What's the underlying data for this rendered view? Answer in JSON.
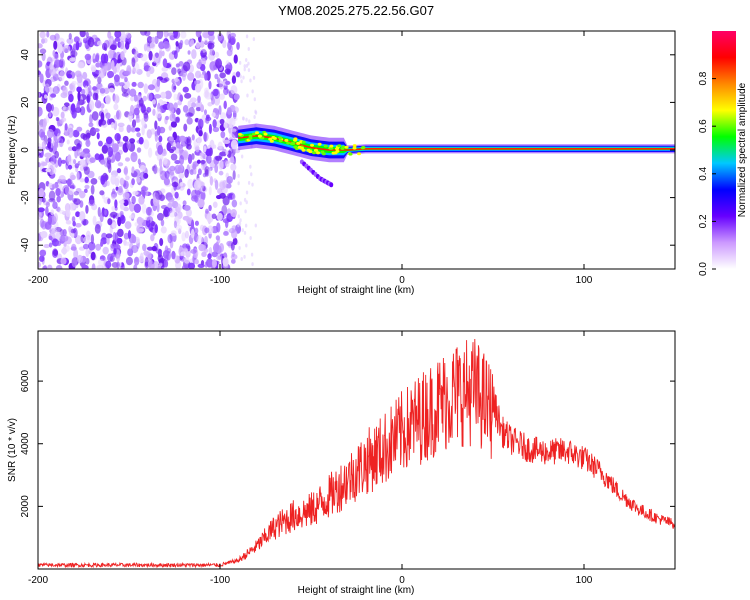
{
  "title": "YM08.2025.275.22.56.G07",
  "chart_data": [
    {
      "type": "heatmap",
      "name": "spectrogram",
      "xlabel": "Height of straight line (km)",
      "ylabel": "Frequency (Hz)",
      "xlim": [
        -200,
        150
      ],
      "ylim": [
        -50,
        50
      ],
      "xticks": [
        -200,
        -100,
        0,
        100
      ],
      "yticks": [
        -40,
        -20,
        0,
        20,
        40
      ],
      "colorbar": {
        "label": "Normalized spectral amplitude",
        "range": [
          0,
          1
        ],
        "ticks": [
          "0.0",
          "0.2",
          "0.4",
          "0.6",
          "0.8"
        ],
        "tick_values": [
          0.0,
          0.2,
          0.4,
          0.6,
          0.8
        ],
        "stops": [
          "#ffffff",
          "#cc99ff",
          "#6600ff",
          "#0000ff",
          "#00c8ff",
          "#00ff00",
          "#ffff00",
          "#ff8800",
          "#ff0000",
          "#ff0066"
        ]
      },
      "noise_region": {
        "x_from": -200,
        "x_to": -90
      },
      "signal_ridge": [
        {
          "x": -90,
          "f": 5
        },
        {
          "x": -80,
          "f": 6
        },
        {
          "x": -70,
          "f": 5
        },
        {
          "x": -60,
          "f": 3
        },
        {
          "x": -50,
          "f": 1
        },
        {
          "x": -40,
          "f": 0
        },
        {
          "x": -30,
          "f": 0
        },
        {
          "x": -20,
          "f": 0.5
        },
        {
          "x": 0,
          "f": 0.5
        },
        {
          "x": 50,
          "f": 0.5
        },
        {
          "x": 100,
          "f": 0.5
        },
        {
          "x": 150,
          "f": 0.5
        }
      ],
      "branch": [
        {
          "x": -55,
          "f": -5
        },
        {
          "x": -45,
          "f": -12
        },
        {
          "x": -38,
          "f": -15
        }
      ]
    },
    {
      "type": "line",
      "name": "snr",
      "xlabel": "Height of straight line (km)",
      "ylabel": "SNR (10 * v/v)",
      "xlim": [
        -200,
        150
      ],
      "ylim": [
        0,
        7600
      ],
      "xticks": [
        -200,
        -100,
        0,
        100
      ],
      "yticks": [
        2000,
        4000,
        6000
      ],
      "color": "#ee2222",
      "envelope": [
        {
          "x": -200,
          "y": 150
        },
        {
          "x": -150,
          "y": 150
        },
        {
          "x": -100,
          "y": 150
        },
        {
          "x": -90,
          "y": 300
        },
        {
          "x": -80,
          "y": 800
        },
        {
          "x": -70,
          "y": 1500
        },
        {
          "x": -60,
          "y": 1900
        },
        {
          "x": -50,
          "y": 2100
        },
        {
          "x": -40,
          "y": 2600
        },
        {
          "x": -30,
          "y": 3200
        },
        {
          "x": -20,
          "y": 3800
        },
        {
          "x": -10,
          "y": 4300
        },
        {
          "x": 0,
          "y": 4900
        },
        {
          "x": 10,
          "y": 5400
        },
        {
          "x": 20,
          "y": 5900
        },
        {
          "x": 30,
          "y": 6300
        },
        {
          "x": 40,
          "y": 6400
        },
        {
          "x": 50,
          "y": 5600
        },
        {
          "x": 55,
          "y": 4600
        },
        {
          "x": 60,
          "y": 4300
        },
        {
          "x": 70,
          "y": 4000
        },
        {
          "x": 80,
          "y": 3900
        },
        {
          "x": 90,
          "y": 3950
        },
        {
          "x": 100,
          "y": 3700
        },
        {
          "x": 110,
          "y": 3200
        },
        {
          "x": 120,
          "y": 2500
        },
        {
          "x": 130,
          "y": 2000
        },
        {
          "x": 140,
          "y": 1700
        },
        {
          "x": 150,
          "y": 1500
        }
      ]
    }
  ]
}
